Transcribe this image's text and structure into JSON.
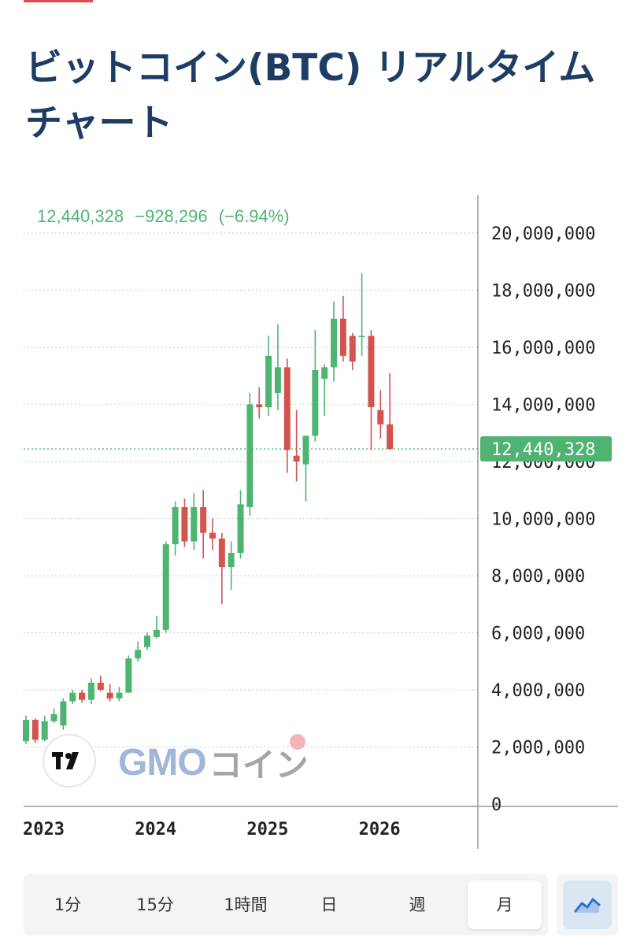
{
  "page": {
    "title": "ビットコイン(BTC) リアルタイムチャート"
  },
  "legend": {
    "last": "12,440,328",
    "change": "−928,296",
    "change_pct": "(−6.94%)"
  },
  "brand": {
    "tv_logo": "TV",
    "gmo": "GMO",
    "coin": "コイン"
  },
  "timeframes": {
    "items": [
      {
        "label": "1分"
      },
      {
        "label": "15分"
      },
      {
        "label": "1時間"
      },
      {
        "label": "日"
      },
      {
        "label": "週"
      },
      {
        "label": "月"
      }
    ],
    "active": "月"
  },
  "chart_type_button": {
    "icon": "area-chart-icon"
  },
  "colors": {
    "up": "#4fb471",
    "down": "#d2544f",
    "title": "#1e3d64",
    "price_tag": "#4fb471"
  },
  "chart_data": {
    "type": "candlestick",
    "title": "",
    "xlabel": "",
    "ylabel": "",
    "y_ticks": [
      "20,000,000",
      "18,000,000",
      "16,000,000",
      "14,000,000",
      "12,000,000",
      "10,000,000",
      "8,000,000",
      "6,000,000",
      "4,000,000",
      "2,000,000",
      "0"
    ],
    "y_tick_values": [
      20000000,
      18000000,
      16000000,
      14000000,
      12000000,
      10000000,
      8000000,
      6000000,
      4000000,
      2000000,
      0
    ],
    "x_ticks": [
      "2023",
      "2024",
      "2025",
      "2026"
    ],
    "x_tick_months": [
      1,
      13,
      25,
      37
    ],
    "last_price_label": "12,440,328",
    "last_price": 12440328,
    "grid": true,
    "candles": [
      {
        "month": "2023-01",
        "o": 2200000,
        "h": 3100000,
        "l": 2100000,
        "c": 2950000
      },
      {
        "month": "2023-02",
        "o": 2950000,
        "h": 3000000,
        "l": 2150000,
        "c": 2250000
      },
      {
        "month": "2023-03",
        "o": 2250000,
        "h": 3100000,
        "l": 2200000,
        "c": 2900000
      },
      {
        "month": "2023-04",
        "o": 2900000,
        "h": 3350000,
        "l": 2850000,
        "c": 3150000
      },
      {
        "month": "2023-05",
        "o": 2750000,
        "h": 3700000,
        "l": 2600000,
        "c": 3600000
      },
      {
        "month": "2023-06",
        "o": 3600000,
        "h": 4000000,
        "l": 3500000,
        "c": 3900000
      },
      {
        "month": "2023-07",
        "o": 3900000,
        "h": 4000000,
        "l": 3550000,
        "c": 3650000
      },
      {
        "month": "2023-08",
        "o": 3650000,
        "h": 4400000,
        "l": 3500000,
        "c": 4250000
      },
      {
        "month": "2023-09",
        "o": 4250000,
        "h": 4500000,
        "l": 3950000,
        "c": 4000000
      },
      {
        "month": "2023-10",
        "o": 3900000,
        "h": 4200000,
        "l": 3600000,
        "c": 3700000
      },
      {
        "month": "2023-11",
        "o": 3700000,
        "h": 4100000,
        "l": 3600000,
        "c": 3900000
      },
      {
        "month": "2023-12",
        "o": 3900000,
        "h": 5200000,
        "l": 3900000,
        "c": 5100000
      },
      {
        "month": "2024-01",
        "o": 5100000,
        "h": 5700000,
        "l": 5000000,
        "c": 5400000
      },
      {
        "month": "2024-02",
        "o": 5500000,
        "h": 6000000,
        "l": 5400000,
        "c": 5900000
      },
      {
        "month": "2024-03",
        "o": 5850000,
        "h": 6600000,
        "l": 5800000,
        "c": 6100000
      },
      {
        "month": "2024-04",
        "o": 6100000,
        "h": 9200000,
        "l": 6000000,
        "c": 9100000
      },
      {
        "month": "2024-05",
        "o": 9100000,
        "h": 10600000,
        "l": 8700000,
        "c": 10400000
      },
      {
        "month": "2024-06",
        "o": 10400000,
        "h": 10700000,
        "l": 9000000,
        "c": 9200000
      },
      {
        "month": "2024-07",
        "o": 9200000,
        "h": 10900000,
        "l": 8900000,
        "c": 10400000
      },
      {
        "month": "2024-08",
        "o": 10400000,
        "h": 11000000,
        "l": 8600000,
        "c": 9500000
      },
      {
        "month": "2024-09",
        "o": 9500000,
        "h": 10000000,
        "l": 8900000,
        "c": 9300000
      },
      {
        "month": "2024-10",
        "o": 9300000,
        "h": 9500000,
        "l": 7000000,
        "c": 8300000
      },
      {
        "month": "2024-11",
        "o": 8300000,
        "h": 9200000,
        "l": 7500000,
        "c": 8800000
      },
      {
        "month": "2024-12",
        "o": 8800000,
        "h": 11000000,
        "l": 8600000,
        "c": 10500000
      },
      {
        "month": "2025-01",
        "o": 10400000,
        "h": 14400000,
        "l": 10100000,
        "c": 14000000
      },
      {
        "month": "2025-02",
        "o": 14000000,
        "h": 14600000,
        "l": 13500000,
        "c": 13900000
      },
      {
        "month": "2025-03",
        "o": 13900000,
        "h": 16400000,
        "l": 13600000,
        "c": 15700000
      },
      {
        "month": "2025-04",
        "o": 14400000,
        "h": 16800000,
        "l": 13800000,
        "c": 15300000
      },
      {
        "month": "2025-05",
        "o": 15300000,
        "h": 15600000,
        "l": 11600000,
        "c": 12400000
      },
      {
        "month": "2025-06",
        "o": 12200000,
        "h": 13800000,
        "l": 11300000,
        "c": 12000000
      },
      {
        "month": "2025-07",
        "o": 11900000,
        "h": 12900000,
        "l": 10600000,
        "c": 12900000
      },
      {
        "month": "2025-08",
        "o": 12900000,
        "h": 16600000,
        "l": 12700000,
        "c": 15200000
      },
      {
        "month": "2025-09",
        "o": 14900000,
        "h": 15400000,
        "l": 13600000,
        "c": 15300000
      },
      {
        "month": "2025-10",
        "o": 15300000,
        "h": 17600000,
        "l": 14800000,
        "c": 17000000
      },
      {
        "month": "2025-11",
        "o": 17000000,
        "h": 17800000,
        "l": 15500000,
        "c": 15700000
      },
      {
        "month": "2025-12",
        "o": 16400000,
        "h": 16500000,
        "l": 15200000,
        "c": 15500000
      },
      {
        "month": "2026-01",
        "o": 16400000,
        "h": 18600000,
        "l": 15700000,
        "c": 16400000
      },
      {
        "month": "2026-02",
        "o": 16400000,
        "h": 16600000,
        "l": 12400000,
        "c": 13900000
      },
      {
        "month": "2026-03",
        "o": 13800000,
        "h": 14500000,
        "l": 12800000,
        "c": 13300000
      },
      {
        "month": "2026-04",
        "o": 13300000,
        "h": 15100000,
        "l": 12400000,
        "c": 12440328
      }
    ]
  }
}
